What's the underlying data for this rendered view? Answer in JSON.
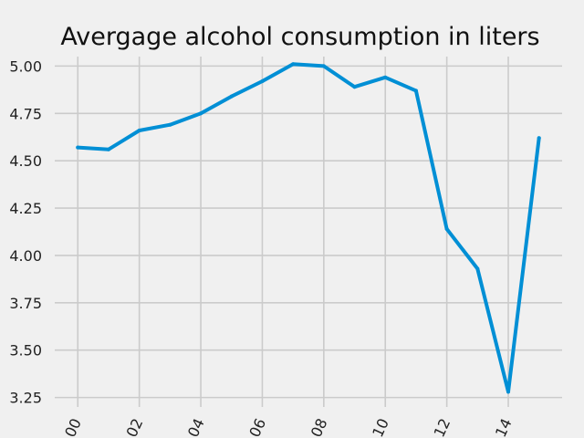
{
  "chart_data": {
    "type": "line",
    "title": "Avergage alcohol consumption in liters",
    "xlabel": "",
    "ylabel": "",
    "x": [
      0,
      1,
      2,
      3,
      4,
      5,
      6,
      7,
      8,
      9,
      10,
      11,
      12,
      13,
      14,
      15
    ],
    "values": [
      4.57,
      4.56,
      4.66,
      4.69,
      4.75,
      4.84,
      4.92,
      5.01,
      5.0,
      4.89,
      4.94,
      4.87,
      4.14,
      3.93,
      3.28,
      4.62
    ],
    "xticks": [
      0,
      2,
      4,
      6,
      8,
      10,
      12,
      14
    ],
    "xtick_labels": [
      "00",
      "02",
      "04",
      "06",
      "08",
      "10",
      "12",
      "14"
    ],
    "yticks": [
      3.25,
      3.5,
      3.75,
      4.0,
      4.25,
      4.5,
      4.75,
      5.0
    ],
    "ytick_labels": [
      "3.25",
      "3.50",
      "3.75",
      "4.00",
      "4.25",
      "4.50",
      "4.75",
      "5.00"
    ],
    "xlim": [
      -0.75,
      15.75
    ],
    "ylim": [
      3.2,
      5.05
    ],
    "grid": true,
    "line_color": "#008fd5",
    "background": "#f0f0f0",
    "grid_color": "#cbcbcb"
  }
}
